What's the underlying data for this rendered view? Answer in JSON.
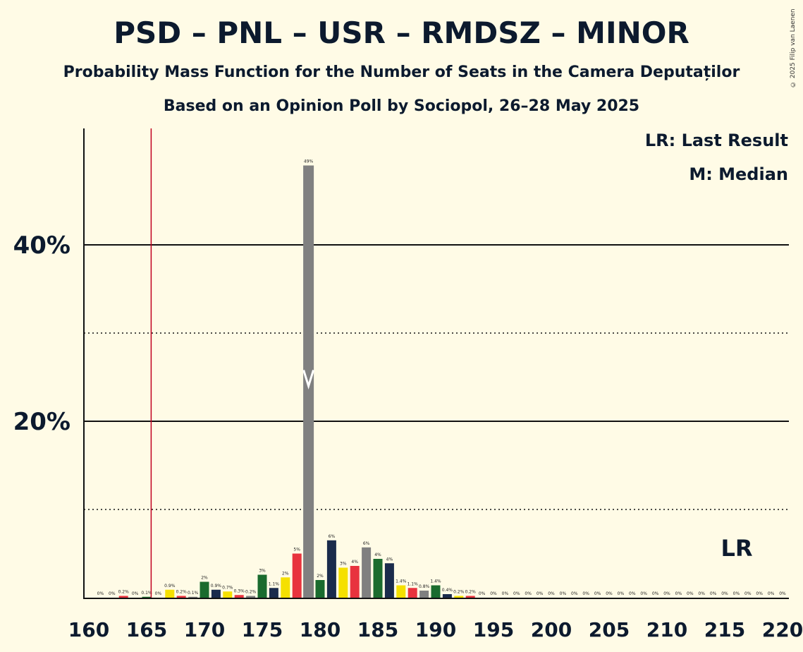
{
  "title": "PSD – PNL – USR – RMDSZ – MINOR",
  "subtitle": "Probability Mass Function for the Number of Seats in the Camera Deputaților",
  "subtitle2": "Based on an Opinion Poll by Sociopol, 26–28 May 2025",
  "copyright": "© 2025 Filip van Laenen",
  "legend": {
    "lr": "LR: Last Result",
    "m": "M: Median"
  },
  "lr_marker": "LR",
  "chart_data": {
    "type": "bar",
    "title": "PSD – PNL – USR – RMDSZ – MINOR",
    "xlim": [
      160,
      220
    ],
    "ylim": [
      0,
      53
    ],
    "xticks": [
      160,
      165,
      170,
      175,
      180,
      185,
      190,
      195,
      200,
      205,
      210,
      215,
      220
    ],
    "yticks_solid": [
      20,
      40
    ],
    "ytick_labels": [
      "20%",
      "40%"
    ],
    "yticks_dotted": [
      10,
      30
    ],
    "last_result": 166,
    "median": 179,
    "x": [
      161,
      162,
      163,
      164,
      165,
      166,
      167,
      168,
      169,
      170,
      171,
      172,
      173,
      174,
      175,
      176,
      177,
      178,
      179,
      180,
      181,
      182,
      183,
      184,
      185,
      186,
      187,
      188,
      189,
      190,
      191,
      192,
      193,
      194,
      195,
      196,
      197,
      198,
      199,
      200,
      201,
      202,
      203,
      204,
      205,
      206,
      207,
      208,
      209,
      210,
      211,
      212,
      213,
      214,
      215,
      216,
      217,
      218,
      219,
      220
    ],
    "values": [
      0,
      0,
      0.2,
      0,
      0.1,
      0,
      0.9,
      0.2,
      0.1,
      1.8,
      0.9,
      0.7,
      0.3,
      0.2,
      2.6,
      1.1,
      2.3,
      5.0,
      49,
      2.0,
      6.5,
      3.4,
      3.6,
      5.7,
      4.4,
      3.9,
      1.4,
      1.1,
      0.8,
      1.4,
      0.4,
      0.2,
      0.2,
      0,
      0,
      0,
      0,
      0,
      0,
      0,
      0,
      0,
      0,
      0,
      0,
      0,
      0,
      0,
      0,
      0,
      0,
      0,
      0,
      0,
      0,
      0,
      0,
      0,
      0,
      0
    ],
    "labels": [
      "0%",
      "0%",
      "0.2%",
      "0%",
      "0.1%",
      "0%",
      "0.9%",
      "0.2%",
      "0.1%",
      "2%",
      "0.9%",
      "0.7%",
      "0.3%",
      "0.2%",
      "3%",
      "1.1%",
      "2%",
      "5%",
      "49%",
      "2%",
      "6%",
      "3%",
      "4%",
      "6%",
      "4%",
      "4%",
      "1.4%",
      "1.1%",
      "0.8%",
      "1.4%",
      "0.4%",
      "0.2%",
      "0.2%",
      "0%",
      "0%",
      "0%",
      "0%",
      "0%",
      "0%",
      "0%",
      "0%",
      "0%",
      "0%",
      "0%",
      "0%",
      "0%",
      "0%",
      "0%",
      "0%",
      "0%",
      "0%",
      "0%",
      "0%",
      "0%",
      "0%",
      "0%",
      "0%",
      "0%",
      "0%",
      "0%"
    ],
    "colors": [
      "#1a2b4c",
      "#f5e000",
      "#e8333e",
      "#808080",
      "#1a6b2e"
    ],
    "lr_color": "#c00020",
    "grid_color": "#111111"
  }
}
